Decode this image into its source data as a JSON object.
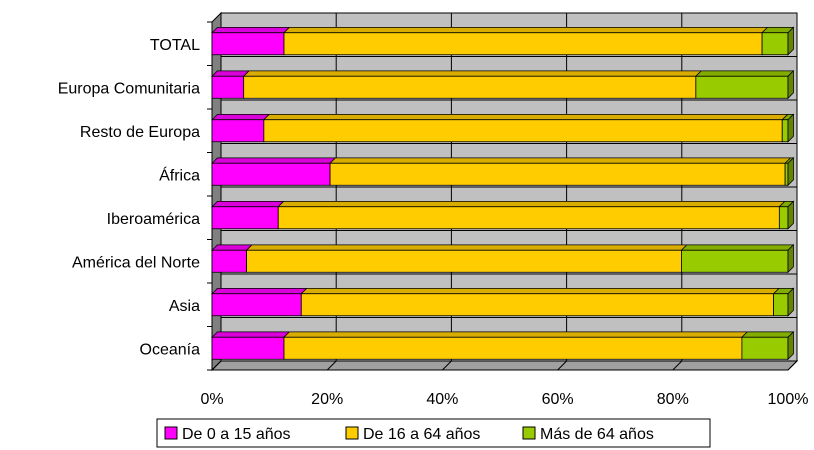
{
  "chart_data": {
    "type": "bar",
    "orientation": "horizontal",
    "stacked": "percent",
    "categories": [
      "TOTAL",
      "Europa Comunitaria",
      "Resto de Europa",
      "África",
      "Iberoamérica",
      "América del Norte",
      "Asia",
      "Oceanía"
    ],
    "series": [
      {
        "name": "De 0 a 15 años",
        "color": "#ff00ff",
        "values": [
          12.5,
          5.5,
          9.0,
          20.5,
          11.5,
          6.0,
          15.5,
          12.5
        ]
      },
      {
        "name": "De 16 a 64 años",
        "color": "#ffcc00",
        "values": [
          83.0,
          78.5,
          90.0,
          79.0,
          87.0,
          75.5,
          82.0,
          79.5
        ]
      },
      {
        "name": "Más de 64 años",
        "color": "#99cc00",
        "values": [
          4.5,
          16.0,
          1.0,
          0.5,
          1.5,
          18.5,
          2.5,
          8.0
        ]
      }
    ],
    "xticks": [
      "0%",
      "20%",
      "40%",
      "60%",
      "80%",
      "100%"
    ],
    "xlim": [
      0,
      100
    ],
    "grid": true,
    "legend": "bottom"
  }
}
